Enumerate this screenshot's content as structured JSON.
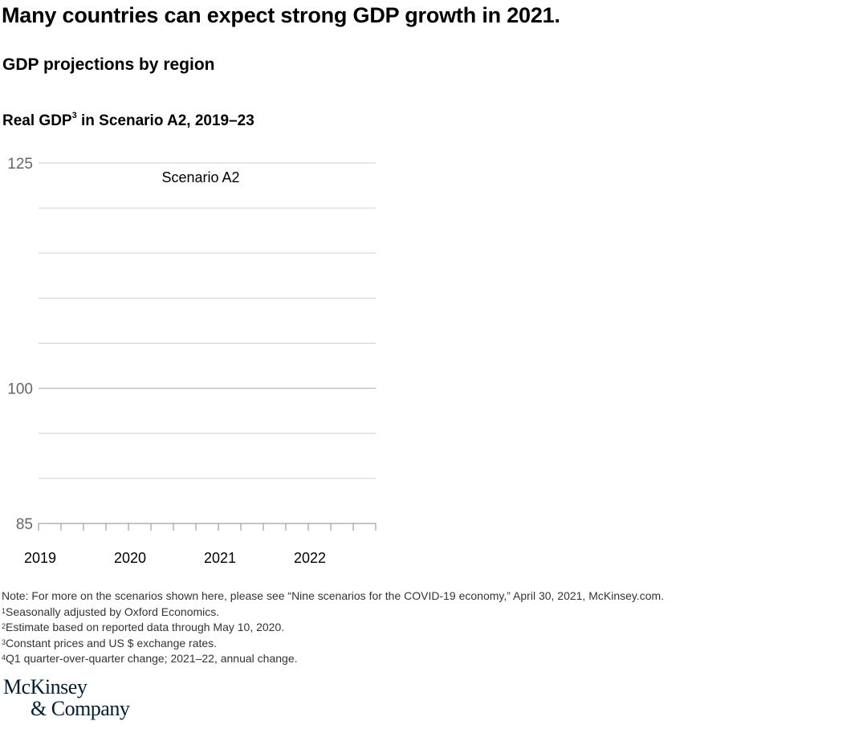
{
  "headline": "Many countries can expect strong GDP growth in 2021.",
  "subtitle": "GDP projections by region",
  "chart_heading": {
    "text": "Real GDP",
    "sup": "3",
    "suffix": " in Scenario A2, 2019–23"
  },
  "chart_data": {
    "type": "line",
    "title": "Real GDP in Scenario A2, 2019–23",
    "annotation": "Scenario A2",
    "xlabel": "",
    "ylabel": "",
    "ylim": [
      85,
      125
    ],
    "ytick_labels": [
      {
        "value": 125,
        "label": "125"
      },
      {
        "value": 100,
        "label": "100"
      },
      {
        "value": 85,
        "label": "85"
      }
    ],
    "gridlines": [
      125,
      120,
      115,
      110,
      105,
      100,
      95,
      90
    ],
    "x_labels": [
      "2019",
      "2020",
      "2021",
      "2022"
    ],
    "quarters_per_year": 4,
    "quarter_count": 15,
    "series": [],
    "colors": {
      "grid": "#d0d0d0",
      "grid_baseline": "#a8a8a8",
      "axis": "#8c8c8c",
      "tick_label": "#666666"
    }
  },
  "notes": [
    {
      "sup": "",
      "text": "Note: For more on the scenarios shown here, please see “Nine scenarios for the COVID-19 economy,” April 30, 2021, McKinsey.com."
    },
    {
      "sup": "1",
      "text": "Seasonally adjusted by Oxford Economics."
    },
    {
      "sup": "2",
      "text": "Estimate based on reported data through May 10, 2020."
    },
    {
      "sup": "3",
      "text": "Constant prices and US $ exchange rates."
    },
    {
      "sup": "4",
      "text": "Q1 quarter-over-quarter change; 2021–22, annual change."
    }
  ],
  "logo": {
    "line1": "McKinsey",
    "line2": "& Company"
  }
}
